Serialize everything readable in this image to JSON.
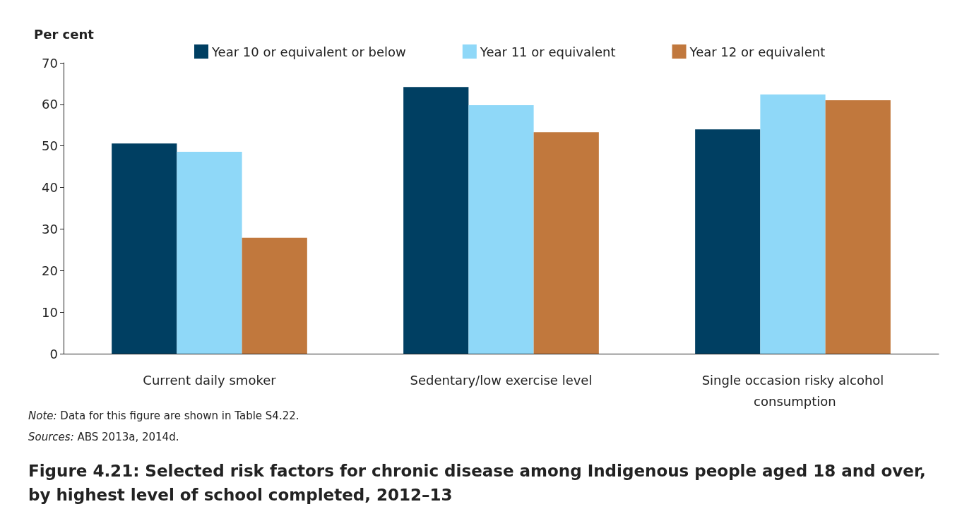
{
  "chart_data": {
    "type": "bar",
    "title": "Figure 4.21: Selected risk factors for chronic disease among Indigenous people aged 18 and over, by highest level of school completed, 2012–13",
    "ylabel": "Per cent",
    "categories": [
      "Current daily smoker",
      "Sedentary/low exercise level",
      "Single occasion risky alcohol consumption"
    ],
    "series": [
      {
        "name": "Year 10 or equivalent or below",
        "color": "#003f62",
        "values": [
          50.6,
          64.2,
          54.0
        ]
      },
      {
        "name": "Year 11 or equivalent",
        "color": "#8fd8f8",
        "values": [
          48.6,
          59.8,
          62.4
        ]
      },
      {
        "name": "Year 12 or equivalent",
        "color": "#c1783d",
        "values": [
          27.9,
          53.3,
          61.0
        ]
      }
    ],
    "ylim": [
      0,
      70
    ],
    "yticks": [
      0,
      10,
      20,
      30,
      40,
      50,
      60,
      70
    ],
    "grid": false,
    "legend": "top",
    "annotations": [
      "Note: Data for this figure are shown in Table S4.22.",
      "Sources: ABS 2013a, 2014d."
    ]
  }
}
